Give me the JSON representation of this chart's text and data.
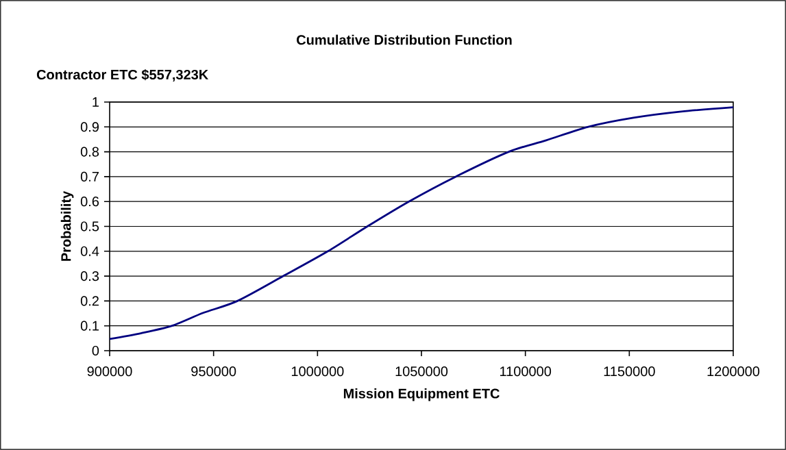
{
  "chart_data": {
    "type": "line",
    "title": "Cumulative Distribution Function",
    "subtitle": "Contractor ETC $557,323K",
    "xlabel": "Mission Equipment ETC",
    "ylabel": "Probability",
    "x": [
      900000,
      915000,
      930000,
      945000,
      961500,
      983500,
      1005000,
      1024000,
      1044000,
      1066500,
      1092000,
      1110000,
      1130000,
      1152000,
      1175000,
      1200000
    ],
    "values": [
      0.047,
      0.07,
      0.1,
      0.152,
      0.2,
      0.3,
      0.4,
      0.5,
      0.6,
      0.7,
      0.8,
      0.846,
      0.9,
      0.937,
      0.962,
      0.979
    ],
    "color": "#000080",
    "xlim": [
      900000,
      1200000
    ],
    "ylim": [
      0,
      1
    ],
    "xticks": [
      900000,
      950000,
      1000000,
      1050000,
      1100000,
      1150000,
      1200000
    ],
    "yticks": [
      0,
      0.1,
      0.2,
      0.3,
      0.4,
      0.5,
      0.6,
      0.7,
      0.8,
      0.9,
      1
    ],
    "grid": "y"
  }
}
